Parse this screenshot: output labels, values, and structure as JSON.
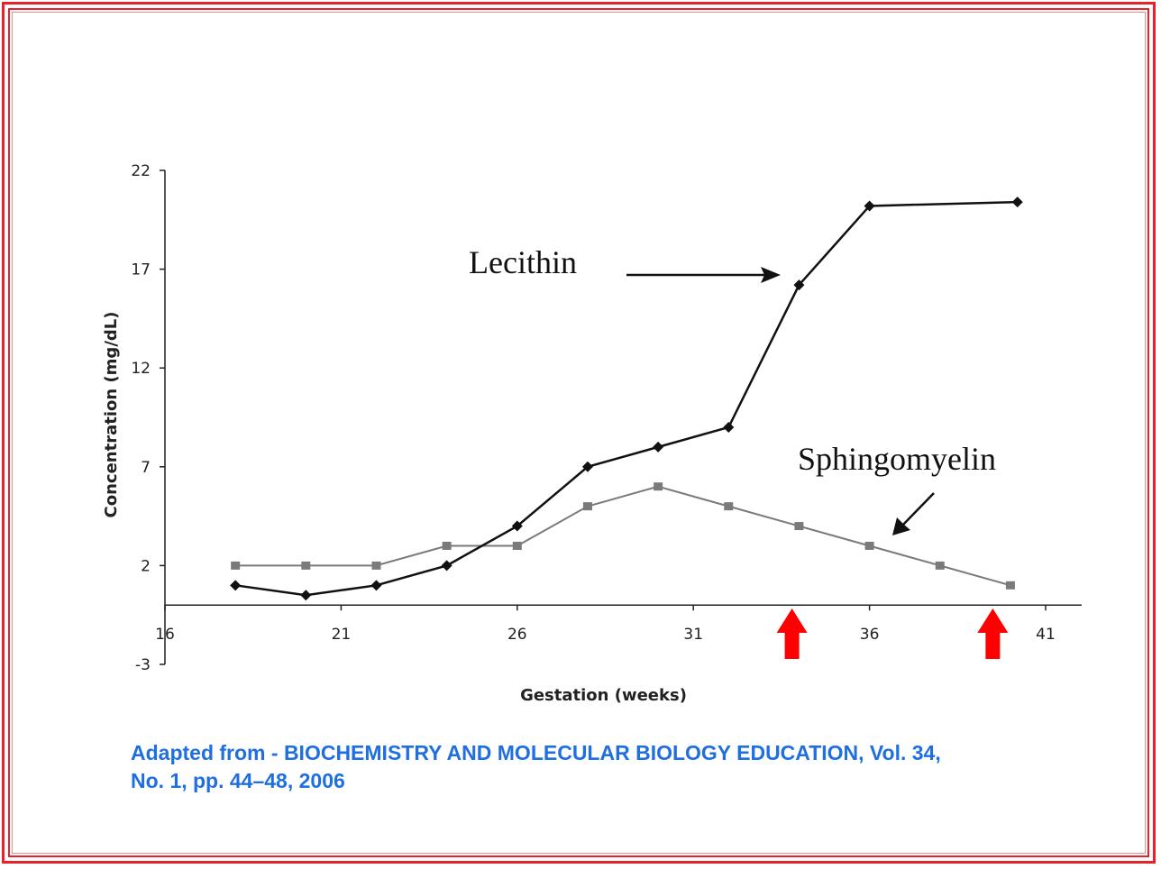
{
  "chart_data": {
    "type": "line",
    "title": "",
    "xlabel": "Gestation (weeks)",
    "ylabel": "Concentration (mg/dL)",
    "xlim": [
      16,
      41
    ],
    "ylim": [
      -3,
      22
    ],
    "x_ticks": [
      16,
      21,
      26,
      31,
      36,
      41
    ],
    "y_ticks": [
      22,
      17,
      12,
      7,
      2,
      -3
    ],
    "grid": false,
    "series": [
      {
        "name": "Lecithin",
        "color": "#111111",
        "marker": "diamond",
        "x": [
          18,
          20,
          22,
          24,
          26,
          28,
          30,
          32,
          34,
          36,
          40.2
        ],
        "y": [
          1,
          0.5,
          1,
          2,
          4,
          7,
          8,
          9,
          16.2,
          20.2,
          20.4
        ]
      },
      {
        "name": "Sphingomyelin",
        "color": "#7a7a7a",
        "marker": "square",
        "x": [
          18,
          20,
          22,
          24,
          26,
          28,
          30,
          32,
          34,
          36,
          38,
          40
        ],
        "y": [
          2,
          2,
          2,
          3,
          3,
          5,
          6,
          5,
          4,
          3,
          2,
          1
        ]
      }
    ],
    "annotations": [
      {
        "text": "Lecithin",
        "points_to_series": "Lecithin"
      },
      {
        "text": "Sphingomyelin",
        "points_to_series": "Sphingomyelin"
      }
    ],
    "markers": [
      {
        "type": "up-arrow",
        "color": "#ff0000",
        "x": 33.8
      },
      {
        "type": "up-arrow",
        "color": "#ff0000",
        "x": 39.5
      }
    ]
  },
  "caption": {
    "line1": "Adapted from - BIOCHEMISTRY AND MOLECULAR BIOLOGY EDUCATION,  Vol. 34,",
    "line2": "No. 1, pp. 44–48, 2006"
  },
  "colors": {
    "frame": "#e8222a",
    "caption": "#1f6fe0",
    "highlight_arrow": "#ff0000"
  }
}
